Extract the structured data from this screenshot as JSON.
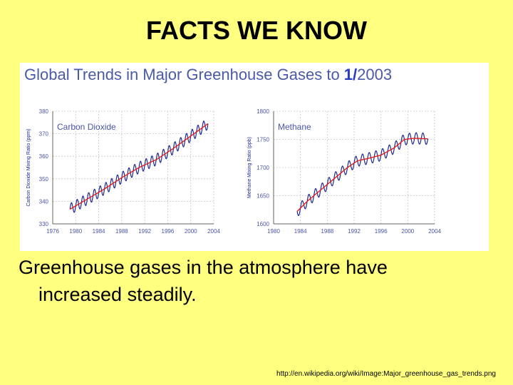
{
  "slide": {
    "title": "FACTS WE KNOW",
    "caption_line1": "Greenhouse gases in the atmosphere have",
    "caption_line2": "increased steadily.",
    "source": "http://en.wikipedia.org/wiki/Image:Major_greenhouse_gas_trends.png"
  },
  "figure": {
    "title_prefix": "Global Trends in Major Greenhouse Gases to ",
    "title_month": "1/",
    "title_year": "2003"
  },
  "colors": {
    "background": "#ffff80",
    "observed": "#1f2b8c",
    "trend": "#e02020",
    "label": "#4a55a8"
  },
  "chart_data": [
    {
      "type": "line",
      "title": "Carbon Dioxide",
      "ylabel": "Carbon Dioxide Mixing Ratio (ppm)",
      "xlabel": "",
      "xlim": [
        1976,
        2004
      ],
      "ylim": [
        330,
        380
      ],
      "xticks": [
        1976,
        1980,
        1984,
        1988,
        1992,
        1996,
        2000,
        2004
      ],
      "yticks": [
        330,
        340,
        350,
        360,
        370,
        380
      ],
      "grid": true,
      "trend_x": [
        1979,
        1982,
        1985,
        1988,
        1991,
        1994,
        1997,
        2000,
        2003
      ],
      "trend_y": [
        336.5,
        341,
        345.5,
        350.5,
        355,
        358.5,
        363.5,
        369,
        374.5
      ],
      "seasonal_amplitude": 2.5
    },
    {
      "type": "line",
      "title": "Methane",
      "ylabel": "Methane Mixing Ratio (ppb)",
      "xlabel": "",
      "xlim": [
        1980,
        2004
      ],
      "ylim": [
        1600,
        1800
      ],
      "xticks": [
        1980,
        1984,
        1988,
        1992,
        1996,
        2000,
        2004
      ],
      "yticks": [
        1600,
        1650,
        1700,
        1750,
        1800
      ],
      "grid": true,
      "trend_x": [
        1983.5,
        1985,
        1987,
        1989,
        1991,
        1992.5,
        1994,
        1996,
        1998,
        1999.5,
        2001,
        2003
      ],
      "trend_y": [
        1622,
        1640,
        1660,
        1680,
        1700,
        1712,
        1716,
        1722,
        1735,
        1750,
        1752,
        1751
      ],
      "seasonal_amplitude": 10
    }
  ]
}
